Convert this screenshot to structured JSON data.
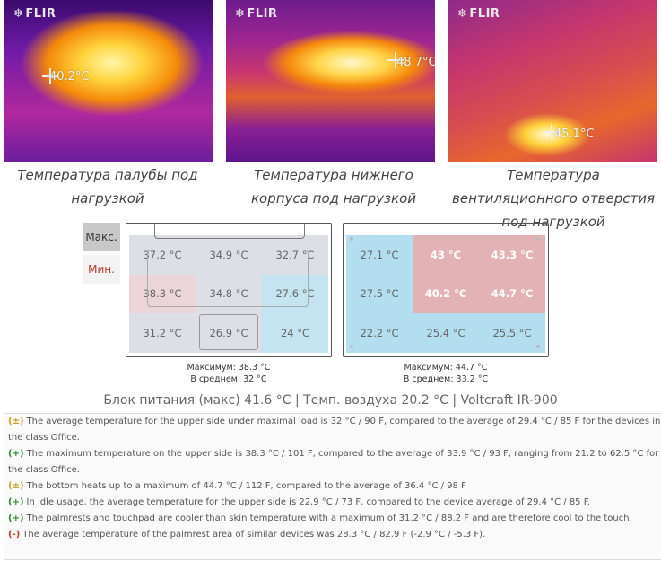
{
  "thermal_images": [
    {
      "brand": "FLIR",
      "temp": "40.2°C",
      "caption": "Температура палубы под нагрузкой"
    },
    {
      "brand": "FLIR",
      "temp": "48.7°C",
      "caption": "Температура нижнего корпуса под нагрузкой"
    },
    {
      "brand": "FLIR",
      "temp": "45.1°C",
      "caption": "Температура вентиляционного отверстия под нагрузкой"
    }
  ],
  "legend": {
    "max": "Макс.",
    "min": "Мин."
  },
  "upper_side": {
    "cells": [
      "37.2 °C",
      "34.9 °C",
      "32.7 °C",
      "38.3 °C",
      "34.8 °C",
      "27.6 °C",
      "31.2 °C",
      "26.9 °C",
      "24 °C"
    ],
    "max_label": "Максимум: 38.3 °C",
    "avg_label": "В среднем: 32 °C"
  },
  "bottom_side": {
    "cells": [
      "27.1 °C",
      "43 °C",
      "43.3 °C",
      "27.5 °C",
      "40.2 °C",
      "44.7 °C",
      "22.2 °C",
      "25.4 °C",
      "25.5 °C"
    ],
    "max_label": "Максимум: 44.7 °C",
    "avg_label": "В среднем: 33.2 °C"
  },
  "psu_line": "Блок питания (макс)  41.6 °C | Темп. воздуха 20.2 °C | Voltcraft IR-900",
  "notes": [
    {
      "sign": "(±)",
      "kind": "neutral",
      "text": "The average temperature for the upper side under maximal load is 32 °C / 90 F, compared to the average of 29.4 °C / 85 F for the devices in the class Office."
    },
    {
      "sign": "(+)",
      "kind": "plus",
      "text": "The maximum temperature on the upper side is 38.3 °C / 101 F, compared to the average of 33.9 °C / 93 F, ranging from 21.2 to 62.5 °C for the class Office."
    },
    {
      "sign": "(±)",
      "kind": "neutral",
      "text": "The bottom heats up to a maximum of 44.7 °C / 112 F, compared to the average of 36.4 °C / 98 F"
    },
    {
      "sign": "(+)",
      "kind": "plus",
      "text": "In idle usage, the average temperature for the upper side is 22.9 °C / 73 F, compared to the device average of 29.4 °C / 85 F."
    },
    {
      "sign": "(+)",
      "kind": "plus",
      "text": "The palmrests and touchpad are cooler than skin temperature with a maximum of 31.2 °C / 88.2 F and are therefore cool to the touch."
    },
    {
      "sign": "(-)",
      "kind": "minus",
      "text": "The average temperature of the palmrest area of similar devices was 28.3 °C / 82.9 F (-2.9 °C / -5.3 F)."
    }
  ]
}
